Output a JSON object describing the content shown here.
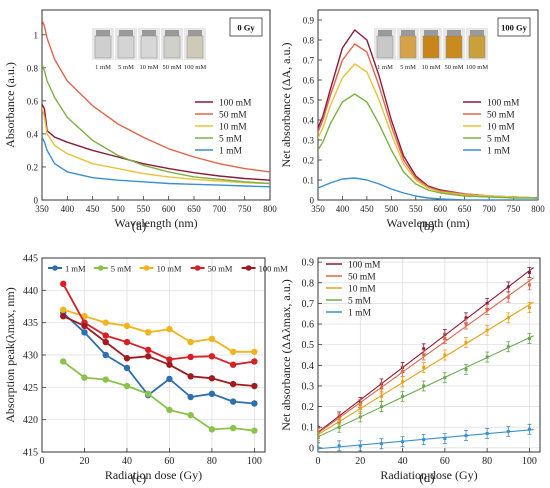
{
  "chart_data": [
    {
      "panel": "(a)",
      "type": "line",
      "xlabel": "Wavelength (nm)",
      "ylabel": "Absorbance (a.u.)",
      "xlim": [
        350,
        800
      ],
      "ylim": [
        0,
        1.15
      ],
      "xticks": [
        350,
        400,
        450,
        500,
        550,
        600,
        650,
        700,
        750,
        800
      ],
      "yticks": [
        0,
        0.2,
        0.4,
        0.6,
        0.8,
        1
      ],
      "ytick_labels": [
        "0",
        "0.2",
        "0.4",
        "0.6",
        "0.8",
        "1"
      ],
      "grid": false,
      "legend_position": "right",
      "annotation": "0 Gy",
      "inset_labels": [
        "1 mM",
        "5 mM",
        "10 mM",
        "50 mM",
        "100 mM"
      ],
      "series": [
        {
          "name": "100 mM",
          "color": "#8b1a3a",
          "x": [
            350,
            355,
            360,
            375,
            400,
            450,
            500,
            550,
            600,
            650,
            700,
            750,
            800
          ],
          "y": [
            0.58,
            0.55,
            0.42,
            0.38,
            0.35,
            0.3,
            0.26,
            0.22,
            0.19,
            0.165,
            0.145,
            0.13,
            0.12
          ]
        },
        {
          "name": "50 mM",
          "color": "#e0664a",
          "x": [
            350,
            355,
            360,
            375,
            400,
            450,
            500,
            550,
            600,
            650,
            700,
            750,
            800
          ],
          "y": [
            1.09,
            1.05,
            0.98,
            0.85,
            0.72,
            0.57,
            0.46,
            0.38,
            0.31,
            0.26,
            0.22,
            0.19,
            0.17
          ]
        },
        {
          "name": "10 mM",
          "color": "#e8c23a",
          "x": [
            350,
            355,
            360,
            375,
            400,
            450,
            500,
            550,
            600,
            650,
            700,
            750,
            800
          ],
          "y": [
            0.56,
            0.5,
            0.4,
            0.33,
            0.28,
            0.22,
            0.19,
            0.16,
            0.14,
            0.125,
            0.115,
            0.105,
            0.1
          ]
        },
        {
          "name": "5 mM",
          "color": "#7cb342",
          "x": [
            350,
            355,
            360,
            375,
            400,
            450,
            500,
            550,
            600,
            650,
            700,
            750,
            800
          ],
          "y": [
            0.82,
            0.78,
            0.72,
            0.62,
            0.5,
            0.36,
            0.27,
            0.21,
            0.17,
            0.14,
            0.125,
            0.11,
            0.1
          ]
        },
        {
          "name": "1 mM",
          "color": "#3a8fd0",
          "x": [
            350,
            355,
            360,
            375,
            400,
            450,
            500,
            550,
            600,
            650,
            700,
            750,
            800
          ],
          "y": [
            0.38,
            0.35,
            0.3,
            0.22,
            0.17,
            0.135,
            0.12,
            0.11,
            0.1,
            0.095,
            0.09,
            0.085,
            0.08
          ]
        }
      ]
    },
    {
      "panel": "(b)",
      "type": "line",
      "xlabel": "Wavelength (nm)",
      "ylabel": "Net absorbance (ΔA, a.u.)",
      "xlim": [
        350,
        800
      ],
      "ylim": [
        0,
        0.95
      ],
      "xticks": [
        350,
        400,
        450,
        500,
        550,
        600,
        650,
        700,
        750,
        800
      ],
      "yticks": [
        0,
        0.1,
        0.2,
        0.3,
        0.4,
        0.5,
        0.6,
        0.7,
        0.8,
        0.9
      ],
      "ytick_labels": [
        "0",
        "0.1",
        "0.2",
        "0.3",
        "0.4",
        "0.5",
        "0.6",
        "0.7",
        "0.8",
        "0.9"
      ],
      "grid": false,
      "legend_position": "right",
      "annotation": "100 Gy",
      "inset_labels": [
        "1 mM",
        "5 mM",
        "10 mM",
        "50 mM",
        "100 mM"
      ],
      "series": [
        {
          "name": "100 mM",
          "color": "#8b1a3a",
          "x": [
            350,
            360,
            375,
            400,
            425,
            450,
            475,
            500,
            525,
            550,
            575,
            600,
            650,
            700,
            750,
            800
          ],
          "y": [
            0.36,
            0.42,
            0.55,
            0.76,
            0.85,
            0.8,
            0.62,
            0.4,
            0.22,
            0.12,
            0.07,
            0.05,
            0.03,
            0.02,
            0.015,
            0.01
          ]
        },
        {
          "name": "50 mM",
          "color": "#e0664a",
          "x": [
            350,
            360,
            375,
            400,
            425,
            450,
            475,
            500,
            525,
            550,
            575,
            600,
            650,
            700,
            750,
            800
          ],
          "y": [
            0.34,
            0.4,
            0.52,
            0.7,
            0.78,
            0.74,
            0.57,
            0.37,
            0.2,
            0.11,
            0.065,
            0.045,
            0.03,
            0.02,
            0.015,
            0.01
          ]
        },
        {
          "name": "10 mM",
          "color": "#e8c23a",
          "x": [
            350,
            360,
            375,
            400,
            425,
            450,
            475,
            500,
            525,
            550,
            575,
            600,
            650,
            700,
            750,
            800
          ],
          "y": [
            0.31,
            0.36,
            0.47,
            0.61,
            0.68,
            0.64,
            0.5,
            0.33,
            0.18,
            0.1,
            0.06,
            0.04,
            0.025,
            0.02,
            0.015,
            0.01
          ]
        },
        {
          "name": "5 mM",
          "color": "#7cb342",
          "x": [
            350,
            360,
            375,
            400,
            425,
            450,
            475,
            500,
            525,
            550,
            575,
            600,
            650,
            700,
            750,
            800
          ],
          "y": [
            0.25,
            0.29,
            0.38,
            0.49,
            0.53,
            0.49,
            0.38,
            0.25,
            0.14,
            0.08,
            0.05,
            0.035,
            0.02,
            0.015,
            0.01,
            0.01
          ]
        },
        {
          "name": "1 mM",
          "color": "#3a8fd0",
          "x": [
            350,
            360,
            375,
            400,
            425,
            450,
            475,
            500,
            525,
            550,
            575,
            600,
            650,
            700,
            750,
            800
          ],
          "y": [
            0.06,
            0.07,
            0.085,
            0.105,
            0.11,
            0.1,
            0.08,
            0.055,
            0.035,
            0.02,
            0.01,
            0.005,
            0.0,
            0.0,
            0.0,
            0.0
          ]
        }
      ]
    },
    {
      "panel": "(c)",
      "type": "line",
      "xlabel": "Radiation dose (Gy)",
      "ylabel": "Absorption peak(λmax, nm)",
      "xlim": [
        0,
        105
      ],
      "ylim": [
        415,
        445
      ],
      "xticks": [
        0,
        20,
        40,
        60,
        80,
        100
      ],
      "yticks": [
        415,
        420,
        425,
        430,
        435,
        440,
        445
      ],
      "grid": true,
      "legend_position": "top",
      "markers": true,
      "series": [
        {
          "name": "1 mM",
          "color": "#2e6fb0",
          "x": [
            10,
            20,
            30,
            40,
            50,
            60,
            70,
            80,
            90,
            100
          ],
          "y": [
            436.5,
            433.5,
            430,
            428,
            423.8,
            426.3,
            423.5,
            424,
            422.8,
            422.5
          ]
        },
        {
          "name": "5 mM",
          "color": "#8bc34a",
          "x": [
            10,
            20,
            30,
            40,
            50,
            60,
            70,
            80,
            90,
            100
          ],
          "y": [
            429,
            426.5,
            426.2,
            425.2,
            424,
            421.5,
            420.7,
            418.5,
            418.7,
            418.3
          ]
        },
        {
          "name": "10 mM",
          "color": "#f2b31b",
          "x": [
            10,
            20,
            30,
            40,
            50,
            60,
            70,
            80,
            90,
            100
          ],
          "y": [
            437,
            436,
            435,
            434.5,
            433.5,
            434,
            432,
            432.5,
            430.5,
            430.5
          ]
        },
        {
          "name": "50 mM",
          "color": "#d91f26",
          "x": [
            10,
            20,
            30,
            40,
            50,
            60,
            70,
            80,
            90,
            100
          ],
          "y": [
            441,
            435,
            433,
            432,
            430.8,
            429.3,
            429.7,
            429.8,
            428.5,
            429
          ]
        },
        {
          "name": "100 mM",
          "color": "#9e1b1e",
          "x": [
            10,
            20,
            30,
            40,
            50,
            60,
            70,
            80,
            90,
            100
          ],
          "y": [
            436,
            434.5,
            432,
            429.5,
            429.8,
            428.5,
            426.7,
            426.4,
            425.5,
            425.2
          ]
        }
      ]
    },
    {
      "panel": "(d)",
      "type": "scatter",
      "xlabel": "Radiation dose (Gy)",
      "ylabel": "Net absorbance (ΔAλmax, a.u.)",
      "xlim": [
        0,
        105
      ],
      "ylim": [
        -0.02,
        0.92
      ],
      "xticks": [
        0,
        20,
        40,
        60,
        80,
        100
      ],
      "yticks": [
        0,
        0.1,
        0.2,
        0.3,
        0.4,
        0.5,
        0.6,
        0.7,
        0.8,
        0.9
      ],
      "ytick_labels": [
        "0",
        "0.1",
        "0.2",
        "0.3",
        "0.4",
        "0.5",
        "0.6",
        "0.7",
        "0.8",
        "0.9"
      ],
      "grid": true,
      "legend_position": "top-left",
      "error_bars": true,
      "series": [
        {
          "name": "100 mM",
          "color": "#8b1a3a",
          "x": [
            0,
            10,
            20,
            30,
            40,
            50,
            60,
            70,
            80,
            90,
            100
          ],
          "y": [
            0.08,
            0.15,
            0.22,
            0.31,
            0.39,
            0.48,
            0.55,
            0.63,
            0.7,
            0.78,
            0.85
          ]
        },
        {
          "name": "50 mM",
          "color": "#e0664a",
          "x": [
            0,
            10,
            20,
            30,
            40,
            50,
            60,
            70,
            80,
            90,
            100
          ],
          "y": [
            0.07,
            0.14,
            0.21,
            0.29,
            0.37,
            0.45,
            0.53,
            0.6,
            0.67,
            0.73,
            0.79
          ]
        },
        {
          "name": "10 mM",
          "color": "#e8a21a",
          "x": [
            0,
            10,
            20,
            30,
            40,
            50,
            60,
            70,
            80,
            90,
            100
          ],
          "y": [
            0.06,
            0.12,
            0.19,
            0.25,
            0.32,
            0.39,
            0.45,
            0.51,
            0.57,
            0.63,
            0.68
          ]
        },
        {
          "name": "5 mM",
          "color": "#6aa84f",
          "x": [
            0,
            10,
            20,
            30,
            40,
            50,
            60,
            70,
            80,
            90,
            100
          ],
          "y": [
            0.05,
            0.1,
            0.15,
            0.2,
            0.25,
            0.3,
            0.34,
            0.38,
            0.44,
            0.49,
            0.53
          ]
        },
        {
          "name": "1 mM",
          "color": "#3a8fd0",
          "x": [
            0,
            10,
            20,
            30,
            40,
            50,
            60,
            70,
            80,
            90,
            100
          ],
          "y": [
            0.0,
            0.01,
            0.01,
            0.02,
            0.03,
            0.04,
            0.045,
            0.06,
            0.07,
            0.08,
            0.09
          ]
        }
      ]
    }
  ]
}
